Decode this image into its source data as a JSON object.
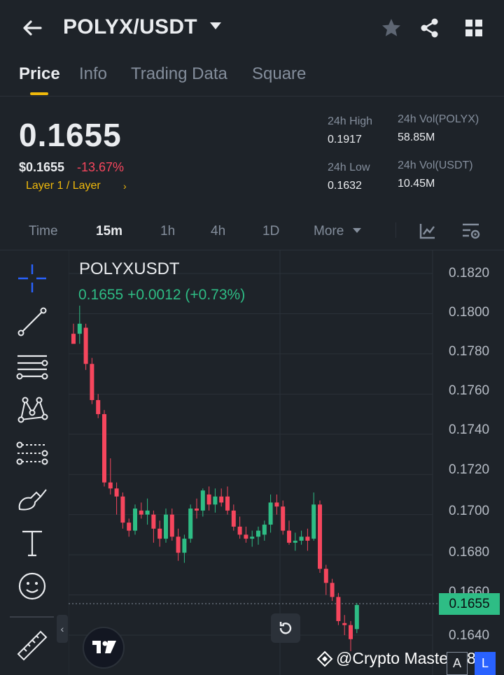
{
  "header": {
    "pair": "POLYX/USDT",
    "icons": [
      "back-arrow-icon",
      "caret-down-icon",
      "star-icon",
      "share-icon",
      "grid-icon"
    ]
  },
  "tabs": [
    {
      "label": "Price",
      "active": true
    },
    {
      "label": "Info",
      "active": false
    },
    {
      "label": "Trading Data",
      "active": false
    },
    {
      "label": "Square",
      "active": false
    }
  ],
  "ticker": {
    "last_price": "0.1655",
    "usd_price": "$0.1655",
    "change_pct": "-13.67%",
    "tag": "Layer 1 / Layer",
    "stats": {
      "high_label": "24h High",
      "high_value": "0.1917",
      "low_label": "24h Low",
      "low_value": "0.1632",
      "vol_base_label": "24h Vol(POLYX)",
      "vol_base_value": "58.85M",
      "vol_quote_label": "24h Vol(USDT)",
      "vol_quote_value": "10.45M"
    }
  },
  "intervals": {
    "items": [
      {
        "label": "Time",
        "active": false
      },
      {
        "label": "15m",
        "active": true
      },
      {
        "label": "1h",
        "active": false
      },
      {
        "label": "4h",
        "active": false
      },
      {
        "label": "1D",
        "active": false
      },
      {
        "label": "More",
        "active": false
      }
    ],
    "icons": [
      "indicator-icon",
      "chart-settings-icon"
    ]
  },
  "drawing_tools": [
    "crosshair-icon",
    "trend-line-icon",
    "horizontal-lines-icon",
    "pattern-icon",
    "fib-icon",
    "brush-icon",
    "text-icon",
    "emoji-icon",
    "ruler-icon"
  ],
  "chart": {
    "symbol": "POLYXUSDT",
    "ohlc_summary": "0.1655  +0.0012 (+0.73%)",
    "last_badge": "0.1655",
    "y_labels": [
      "0.1820",
      "0.1800",
      "0.1780",
      "0.1760",
      "0.1740",
      "0.1720",
      "0.1700",
      "0.1680",
      "0.1660",
      "0.1640"
    ],
    "colors": {
      "up": "#2ebd85",
      "down": "#f6465d",
      "accent": "#f0b90b"
    }
  },
  "chart_data": {
    "type": "candlestick",
    "y_range": [
      0.1625,
      0.183
    ],
    "candles": [
      {
        "o": 0.179,
        "h": 0.1795,
        "l": 0.1785,
        "c": 0.1785
      },
      {
        "o": 0.179,
        "h": 0.1804,
        "l": 0.1785,
        "c": 0.1795
      },
      {
        "o": 0.1793,
        "h": 0.1795,
        "l": 0.1772,
        "c": 0.1775
      },
      {
        "o": 0.1775,
        "h": 0.1778,
        "l": 0.1755,
        "c": 0.1757
      },
      {
        "o": 0.1757,
        "h": 0.176,
        "l": 0.1748,
        "c": 0.175
      },
      {
        "o": 0.175,
        "h": 0.1752,
        "l": 0.1714,
        "c": 0.1716
      },
      {
        "o": 0.1716,
        "h": 0.1728,
        "l": 0.171,
        "c": 0.1713
      },
      {
        "o": 0.1713,
        "h": 0.1716,
        "l": 0.17,
        "c": 0.1709
      },
      {
        "o": 0.1709,
        "h": 0.1711,
        "l": 0.1693,
        "c": 0.1696
      },
      {
        "o": 0.1696,
        "h": 0.1698,
        "l": 0.1689,
        "c": 0.1692
      },
      {
        "o": 0.1692,
        "h": 0.1705,
        "l": 0.169,
        "c": 0.1703
      },
      {
        "o": 0.1702,
        "h": 0.1706,
        "l": 0.1698,
        "c": 0.17
      },
      {
        "o": 0.17,
        "h": 0.1708,
        "l": 0.1695,
        "c": 0.1702
      },
      {
        "o": 0.17,
        "h": 0.1702,
        "l": 0.1686,
        "c": 0.1693
      },
      {
        "o": 0.1693,
        "h": 0.1697,
        "l": 0.1684,
        "c": 0.1688
      },
      {
        "o": 0.1688,
        "h": 0.1703,
        "l": 0.1686,
        "c": 0.17
      },
      {
        "o": 0.17,
        "h": 0.1703,
        "l": 0.1687,
        "c": 0.1689
      },
      {
        "o": 0.1689,
        "h": 0.1693,
        "l": 0.1677,
        "c": 0.1681
      },
      {
        "o": 0.1681,
        "h": 0.169,
        "l": 0.1676,
        "c": 0.1688
      },
      {
        "o": 0.1688,
        "h": 0.1705,
        "l": 0.1686,
        "c": 0.1703
      },
      {
        "o": 0.1703,
        "h": 0.1708,
        "l": 0.1698,
        "c": 0.1702
      },
      {
        "o": 0.1702,
        "h": 0.1713,
        "l": 0.1699,
        "c": 0.1712
      },
      {
        "o": 0.171,
        "h": 0.1714,
        "l": 0.1702,
        "c": 0.1705
      },
      {
        "o": 0.1705,
        "h": 0.1713,
        "l": 0.1701,
        "c": 0.1709
      },
      {
        "o": 0.1709,
        "h": 0.1713,
        "l": 0.1704,
        "c": 0.1706
      },
      {
        "o": 0.1709,
        "h": 0.1714,
        "l": 0.17,
        "c": 0.1702
      },
      {
        "o": 0.1702,
        "h": 0.1705,
        "l": 0.1692,
        "c": 0.1694
      },
      {
        "o": 0.1694,
        "h": 0.1699,
        "l": 0.1688,
        "c": 0.169
      },
      {
        "o": 0.169,
        "h": 0.1694,
        "l": 0.1686,
        "c": 0.1688
      },
      {
        "o": 0.1688,
        "h": 0.1692,
        "l": 0.1684,
        "c": 0.1689
      },
      {
        "o": 0.1689,
        "h": 0.1694,
        "l": 0.1685,
        "c": 0.1692
      },
      {
        "o": 0.169,
        "h": 0.1697,
        "l": 0.1687,
        "c": 0.1695
      },
      {
        "o": 0.1695,
        "h": 0.171,
        "l": 0.1691,
        "c": 0.1706
      },
      {
        "o": 0.1706,
        "h": 0.171,
        "l": 0.17,
        "c": 0.1704
      },
      {
        "o": 0.1704,
        "h": 0.1707,
        "l": 0.169,
        "c": 0.1692
      },
      {
        "o": 0.1692,
        "h": 0.1697,
        "l": 0.1685,
        "c": 0.1686
      },
      {
        "o": 0.1686,
        "h": 0.1691,
        "l": 0.1682,
        "c": 0.1687
      },
      {
        "o": 0.1687,
        "h": 0.1692,
        "l": 0.1685,
        "c": 0.1689
      },
      {
        "o": 0.1689,
        "h": 0.1693,
        "l": 0.1682,
        "c": 0.1687
      },
      {
        "o": 0.1688,
        "h": 0.1711,
        "l": 0.1687,
        "c": 0.1705
      },
      {
        "o": 0.1705,
        "h": 0.1707,
        "l": 0.1671,
        "c": 0.1673
      },
      {
        "o": 0.1673,
        "h": 0.1675,
        "l": 0.166,
        "c": 0.1666
      },
      {
        "o": 0.1666,
        "h": 0.1668,
        "l": 0.1657,
        "c": 0.1659
      },
      {
        "o": 0.1659,
        "h": 0.1661,
        "l": 0.1645,
        "c": 0.1647
      },
      {
        "o": 0.1646,
        "h": 0.165,
        "l": 0.164,
        "c": 0.1645
      },
      {
        "o": 0.1645,
        "h": 0.1647,
        "l": 0.1632,
        "c": 0.1638
      },
      {
        "o": 0.1643,
        "h": 0.1656,
        "l": 0.1641,
        "c": 0.1655
      }
    ]
  },
  "overlay": {
    "watermark": "@Crypto Master 786",
    "box_a": "A",
    "box_l": "L"
  }
}
